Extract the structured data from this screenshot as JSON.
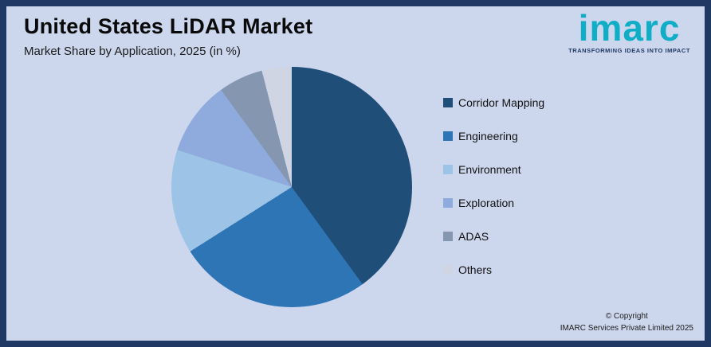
{
  "header": {
    "title": "United States LiDAR Market",
    "subtitle": "Market Share by Application, 2025 (in %)"
  },
  "logo": {
    "text": "imarc",
    "tagline": "TRANSFORMING IDEAS INTO IMPACT"
  },
  "footer": {
    "line1": "© Copyright",
    "line2": "IMARC Services Private Limited 2025"
  },
  "colors": {
    "frame": "#203864",
    "background": "#ccd7ee",
    "logo_teal": "#10aec6",
    "title_text": "#0a0a0a"
  },
  "chart_data": {
    "type": "pie",
    "title": "United States LiDAR Market",
    "subtitle": "Market Share by Application, 2025 (in %)",
    "categories": [
      "Corridor Mapping",
      "Engineering",
      "Environment",
      "Exploration",
      "ADAS",
      "Others"
    ],
    "values": [
      40,
      26,
      14,
      10,
      6,
      4
    ],
    "unit": "%",
    "colors": [
      "#1F4E79",
      "#2E75B6",
      "#9DC3E6",
      "#8FAADC",
      "#8496B0",
      "#CFD5E3"
    ],
    "start_angle_deg": 0,
    "direction": "clockwise",
    "legend_position": "right",
    "data_labels": false
  }
}
